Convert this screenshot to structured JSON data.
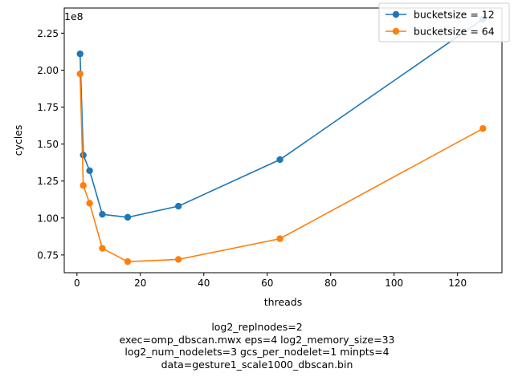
{
  "chart_data": {
    "type": "line",
    "xlabel": "threads",
    "ylabel": "cycles",
    "y_offset_label": "1e8",
    "xlim": [
      -4,
      134
    ],
    "ylim": [
      0.63,
      2.42
    ],
    "x_ticks": [
      0,
      20,
      40,
      60,
      80,
      100,
      120
    ],
    "y_ticks": [
      0.75,
      1.0,
      1.25,
      1.5,
      1.75,
      2.0,
      2.25
    ],
    "y_tick_labels": [
      "0.75",
      "1.00",
      "1.25",
      "1.50",
      "1.75",
      "2.00",
      "2.25"
    ],
    "grid": false,
    "legend_position": "top-right",
    "series": [
      {
        "name": "bucketsize = 12",
        "color": "#1f77b4",
        "x": [
          1,
          2,
          4,
          8,
          16,
          32,
          64,
          128
        ],
        "y": [
          2.11,
          1.425,
          1.32,
          1.025,
          1.005,
          1.08,
          1.395,
          2.345
        ]
      },
      {
        "name": "bucketsize = 64",
        "color": "#ff7f0e",
        "x": [
          1,
          2,
          4,
          8,
          16,
          32,
          64,
          128
        ],
        "y": [
          1.975,
          1.22,
          1.1,
          0.795,
          0.705,
          0.72,
          0.86,
          1.605
        ]
      }
    ]
  },
  "caption_lines": [
    "log2_replnodes=2",
    "exec=omp_dbscan.mwx   eps=4   log2_memory_size=33",
    "log2_num_nodelets=3   gcs_per_nodelet=1   minpts=4",
    "data=gesture1_scale1000_dbscan.bin"
  ]
}
